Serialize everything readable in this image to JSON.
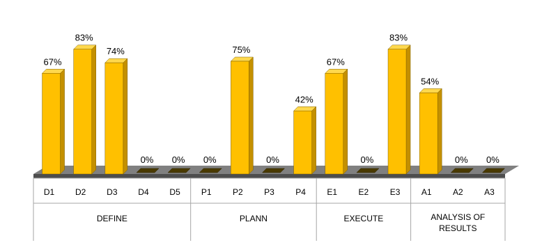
{
  "chart_data": {
    "type": "bar",
    "categories": [
      "D1",
      "D2",
      "D3",
      "D4",
      "D5",
      "P1",
      "P2",
      "P3",
      "P4",
      "E1",
      "E2",
      "E3",
      "A1",
      "A2",
      "A3"
    ],
    "values": [
      67,
      83,
      74,
      0,
      0,
      0,
      75,
      0,
      42,
      67,
      0,
      83,
      54,
      0,
      0
    ],
    "data_labels": [
      "67%",
      "83%",
      "74%",
      "0%",
      "0%",
      "0%",
      "75%",
      "0%",
      "42%",
      "67%",
      "0%",
      "83%",
      "54%",
      "0%",
      "0%"
    ],
    "groups": [
      {
        "label": "DEFINE",
        "start": 0,
        "count": 5
      },
      {
        "label": "PLANN",
        "start": 5,
        "count": 4
      },
      {
        "label": "EXECUTE",
        "start": 9,
        "count": 3
      },
      {
        "label": "ANALYSIS OF RESULTS",
        "lines": [
          "ANALYSIS OF",
          "RESULTS"
        ],
        "start": 12,
        "count": 3
      }
    ],
    "ylim": [
      0,
      100
    ],
    "unit": "%",
    "grid": false,
    "legend": "none",
    "style": "3d",
    "colors": {
      "bar_front": "#FFC000",
      "bar_side": "#C49000",
      "bar_top": "#FFD84D",
      "bar_edge": "#7F6000",
      "floor": "#808080",
      "floor_dark": "#4D4D4D",
      "axis_line": "#A6A6A6"
    }
  }
}
